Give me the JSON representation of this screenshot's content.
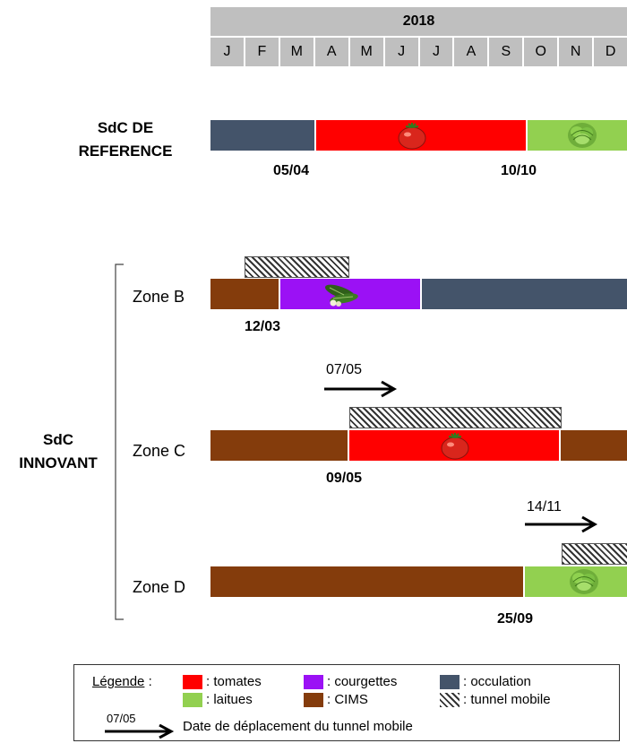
{
  "year": "2018",
  "months": [
    "J",
    "F",
    "M",
    "A",
    "M",
    "J",
    "J",
    "A",
    "S",
    "O",
    "N",
    "D"
  ],
  "colors": {
    "tomates": "#ff0000",
    "courgettes": "#9b11f5",
    "occulation": "#44546a",
    "laitues": "#92d050",
    "cims": "#843c0c",
    "grid": "#bfbfbf"
  },
  "reference": {
    "label_line1": "SdC DE",
    "label_line2": "REFERENCE",
    "dates": [
      "05/04",
      "10/10"
    ]
  },
  "innovant": {
    "label_line1": "SdC",
    "label_line2": "INNOVANT",
    "zones": [
      {
        "name": "Zone B",
        "date": "12/03",
        "icon": "zucchini-icon"
      },
      {
        "name": "Zone C",
        "date": "09/05",
        "arrow_date": "07/05",
        "icon": "tomato-icon"
      },
      {
        "name": "Zone D",
        "date": "25/09",
        "arrow_date": "14/11",
        "icon": "lettuce-icon"
      }
    ]
  },
  "legend": {
    "title": "Légende",
    "title_suffix": " :",
    "items": [
      {
        "key": "tomates",
        "label": ": tomates"
      },
      {
        "key": "laitues",
        "label": ": laitues"
      },
      {
        "key": "courgettes",
        "label": ": courgettes"
      },
      {
        "key": "cims",
        "label": ": CIMS"
      },
      {
        "key": "occulation",
        "label": ": occulation"
      },
      {
        "key": "tunnel",
        "label": ": tunnel mobile"
      }
    ],
    "arrow_example_date": "07/05",
    "arrow_description": "Date de déplacement du tunnel mobile"
  }
}
